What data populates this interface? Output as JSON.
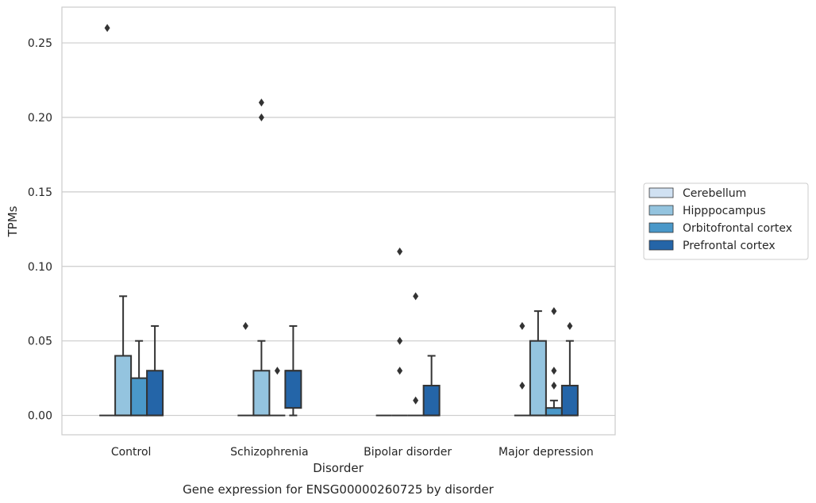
{
  "chart_data": {
    "type": "box",
    "title": "Gene expression for ENSG00000260725 by disorder",
    "xlabel": "Disorder",
    "ylabel": "TPMs",
    "ylim": [
      -0.013,
      0.274
    ],
    "yticks": [
      "0.00",
      "0.05",
      "0.10",
      "0.15",
      "0.20",
      "0.25"
    ],
    "grid": "horizontal",
    "legend_position": "right",
    "categories": [
      "Control",
      "Schizophrenia",
      "Bipolar disorder",
      "Major depression"
    ],
    "series": [
      {
        "name": "Cerebellum",
        "color": "#d0e1f2",
        "boxes": [
          {
            "min": 0,
            "q1": 0,
            "median": 0,
            "q3": 0,
            "max": 0,
            "outliers": [
              0.26
            ]
          },
          {
            "min": 0,
            "q1": 0,
            "median": 0,
            "q3": 0,
            "max": 0,
            "outliers": [
              0.06
            ]
          },
          {
            "min": 0,
            "q1": 0,
            "median": 0,
            "q3": 0,
            "max": 0,
            "outliers": []
          },
          {
            "min": 0,
            "q1": 0,
            "median": 0,
            "q3": 0,
            "max": 0,
            "outliers": [
              0.06,
              0.02
            ]
          }
        ]
      },
      {
        "name": "Hipppocampus",
        "color": "#94c4df",
        "boxes": [
          {
            "min": 0,
            "q1": 0,
            "median": 0,
            "q3": 0.04,
            "max": 0.08,
            "outliers": []
          },
          {
            "min": 0,
            "q1": 0,
            "median": 0,
            "q3": 0.03,
            "max": 0.05,
            "outliers": [
              0.21,
              0.2
            ]
          },
          {
            "min": 0,
            "q1": 0,
            "median": 0,
            "q3": 0,
            "max": 0,
            "outliers": [
              0.11,
              0.05,
              0.03
            ]
          },
          {
            "min": 0,
            "q1": 0,
            "median": 0,
            "q3": 0.05,
            "max": 0.07,
            "outliers": []
          }
        ]
      },
      {
        "name": "Orbitofrontal cortex",
        "color": "#4a98c9",
        "boxes": [
          {
            "min": 0,
            "q1": 0,
            "median": 0,
            "q3": 0.025,
            "max": 0.05,
            "outliers": []
          },
          {
            "min": 0,
            "q1": 0,
            "median": 0,
            "q3": 0,
            "max": 0,
            "outliers": [
              0.03
            ]
          },
          {
            "min": 0,
            "q1": 0,
            "median": 0,
            "q3": 0,
            "max": 0,
            "outliers": [
              0.08,
              0.01
            ]
          },
          {
            "min": 0,
            "q1": 0,
            "median": 0,
            "q3": 0.005,
            "max": 0.01,
            "outliers": [
              0.07,
              0.03,
              0.02
            ]
          }
        ]
      },
      {
        "name": "Prefrontal cortex",
        "color": "#2465a8",
        "boxes": [
          {
            "min": 0,
            "q1": 0,
            "median": 0,
            "q3": 0.03,
            "max": 0.06,
            "outliers": []
          },
          {
            "min": 0,
            "q1": 0.005,
            "median": 0.03,
            "q3": 0.03,
            "max": 0.06,
            "outliers": []
          },
          {
            "min": 0,
            "q1": 0,
            "median": 0,
            "q3": 0.02,
            "max": 0.04,
            "outliers": []
          },
          {
            "min": 0,
            "q1": 0,
            "median": 0,
            "q3": 0.02,
            "max": 0.05,
            "outliers": [
              0.06
            ]
          }
        ]
      }
    ]
  }
}
